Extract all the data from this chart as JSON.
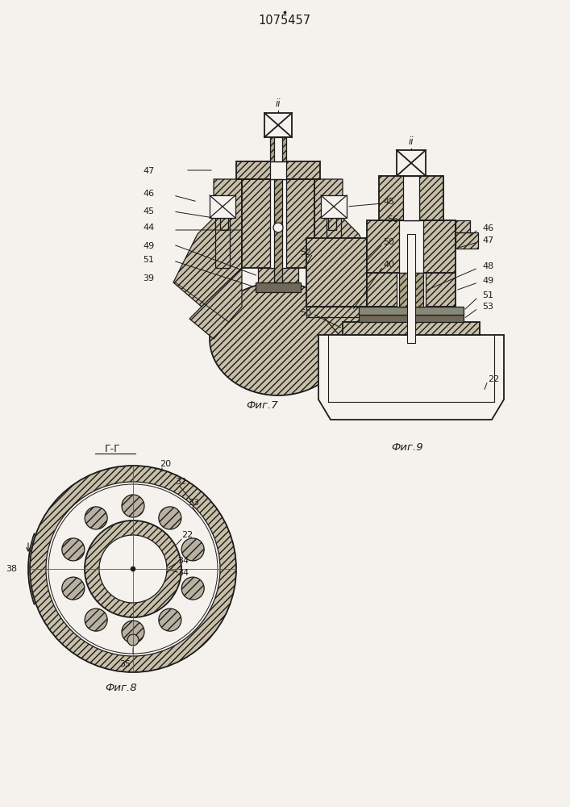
{
  "title": "1075457",
  "bg_color": "#f5f2ee",
  "line_color": "#1a1a1a",
  "hatch_fill": "#c8bfa8",
  "hatch_fill2": "#b0a88a",
  "ball_fill": "#b8b0a0",
  "white_fill": "#f5f2ee",
  "dark_fill": "#706858",
  "fig7_caption": "Фиг.7",
  "fig8_caption": "Фиг.8",
  "fig9_caption": "Фиг.9",
  "fig8_label": "Г-Г"
}
